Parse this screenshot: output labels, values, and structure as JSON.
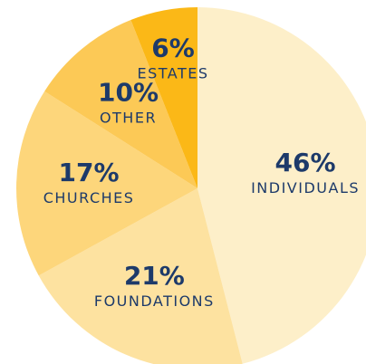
{
  "chart_data": {
    "type": "pie",
    "categories": [
      "INDIVIDUALS",
      "FOUNDATIONS",
      "CHURCHES",
      "OTHER",
      "ESTATES"
    ],
    "values": [
      46,
      21,
      17,
      10,
      6
    ],
    "value_labels": [
      "46%",
      "21%",
      "17%",
      "10%",
      "6%"
    ],
    "colors": [
      "#fdefc9",
      "#fde2a0",
      "#fdd67b",
      "#fcc956",
      "#fbb817"
    ]
  }
}
